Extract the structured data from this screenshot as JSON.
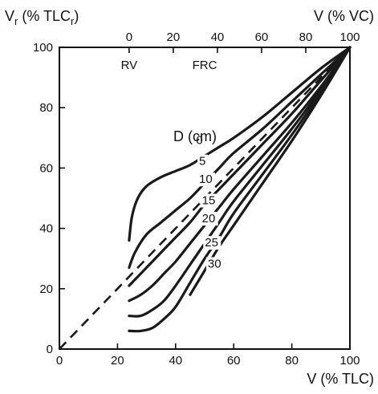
{
  "chart_data": {
    "type": "line",
    "title": "",
    "x_axis": {
      "label": "V (% TLC)",
      "range": [
        0,
        100
      ],
      "ticks": [
        "0",
        "20",
        "40",
        "60",
        "80",
        "100"
      ]
    },
    "y_axis": {
      "label": "V",
      "label_subscript": "r",
      "label_suffix": " (% TLC",
      "label_suffix_subscript": "r",
      "label_close": ")",
      "range": [
        0,
        100
      ],
      "ticks": [
        "0",
        "20",
        "40",
        "60",
        "80",
        "100"
      ]
    },
    "top_axis": {
      "label": "V (% VC)",
      "ticks": [
        {
          "label": "0",
          "x_tlc": 24
        },
        {
          "label": "20",
          "x_tlc": 39.2
        },
        {
          "label": "40",
          "x_tlc": 54.4
        },
        {
          "label": "60",
          "x_tlc": 69.6
        },
        {
          "label": "80",
          "x_tlc": 84.8
        },
        {
          "label": "100",
          "x_tlc": 100
        }
      ]
    },
    "markers": [
      {
        "label": "RV",
        "x": 24
      },
      {
        "label": "FRC",
        "x": 50
      }
    ],
    "identity_line": {
      "style": "dashed",
      "from": [
        0,
        0
      ],
      "to": [
        100,
        100
      ]
    },
    "curve_group_label": "D (cm)",
    "series": [
      {
        "name": "0",
        "label_at": [
          49,
          68
        ],
        "points": [
          [
            24,
            36
          ],
          [
            25,
            44
          ],
          [
            27,
            50
          ],
          [
            30,
            54
          ],
          [
            35,
            57
          ],
          [
            40,
            59
          ],
          [
            45,
            61
          ],
          [
            50,
            64
          ],
          [
            55,
            67
          ],
          [
            60,
            70
          ],
          [
            70,
            77
          ],
          [
            80,
            85
          ],
          [
            90,
            93
          ],
          [
            100,
            100
          ]
        ]
      },
      {
        "name": "5",
        "label_at": [
          50,
          61
        ],
        "points": [
          [
            24,
            27
          ],
          [
            26,
            32
          ],
          [
            30,
            38
          ],
          [
            35,
            42
          ],
          [
            40,
            46
          ],
          [
            45,
            50
          ],
          [
            50,
            55
          ],
          [
            55,
            60
          ],
          [
            60,
            65
          ],
          [
            70,
            73
          ],
          [
            80,
            82
          ],
          [
            90,
            91
          ],
          [
            100,
            100
          ]
        ]
      },
      {
        "name": "10",
        "label_at": [
          50,
          55
        ],
        "points": [
          [
            24,
            21
          ],
          [
            28,
            25
          ],
          [
            32,
            29
          ],
          [
            36,
            33
          ],
          [
            40,
            37
          ],
          [
            45,
            42
          ],
          [
            50,
            48
          ],
          [
            55,
            53
          ],
          [
            60,
            58
          ],
          [
            70,
            68
          ],
          [
            80,
            78
          ],
          [
            90,
            89
          ],
          [
            100,
            100
          ]
        ]
      },
      {
        "name": "15",
        "label_at": [
          51,
          48
        ],
        "points": [
          [
            24,
            16
          ],
          [
            28,
            18
          ],
          [
            32,
            21
          ],
          [
            36,
            25
          ],
          [
            40,
            29
          ],
          [
            45,
            35
          ],
          [
            50,
            41
          ],
          [
            55,
            47
          ],
          [
            60,
            53
          ],
          [
            70,
            64
          ],
          [
            80,
            75
          ],
          [
            90,
            87
          ],
          [
            100,
            100
          ]
        ]
      },
      {
        "name": "20",
        "label_at": [
          51,
          42
        ],
        "points": [
          [
            24,
            11
          ],
          [
            28,
            11
          ],
          [
            32,
            13
          ],
          [
            36,
            16
          ],
          [
            40,
            21
          ],
          [
            45,
            28
          ],
          [
            50,
            35
          ],
          [
            55,
            42
          ],
          [
            60,
            49
          ],
          [
            70,
            61
          ],
          [
            80,
            73
          ],
          [
            90,
            86
          ],
          [
            100,
            100
          ]
        ]
      },
      {
        "name": "25",
        "label_at": [
          52,
          34
        ],
        "points": [
          [
            24,
            6
          ],
          [
            28,
            6
          ],
          [
            32,
            7
          ],
          [
            36,
            10
          ],
          [
            40,
            14
          ],
          [
            45,
            22
          ],
          [
            50,
            30
          ],
          [
            55,
            37
          ],
          [
            60,
            45
          ],
          [
            70,
            58
          ],
          [
            80,
            71
          ],
          [
            90,
            85
          ],
          [
            100,
            100
          ]
        ]
      },
      {
        "name": "30",
        "label_at": [
          53,
          27
        ],
        "points": [
          [
            45,
            18
          ],
          [
            50,
            26
          ],
          [
            55,
            34
          ],
          [
            60,
            41
          ],
          [
            70,
            55
          ],
          [
            80,
            69
          ],
          [
            90,
            84
          ],
          [
            100,
            100
          ]
        ]
      }
    ]
  }
}
